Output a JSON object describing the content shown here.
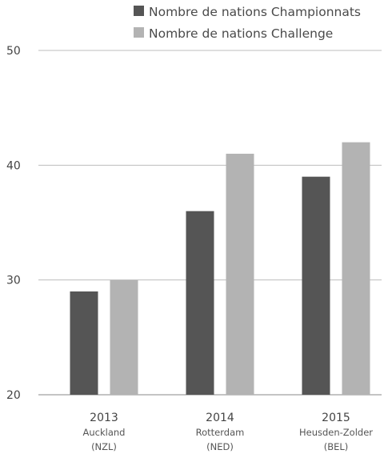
{
  "chart_data": {
    "type": "bar",
    "categories": [
      {
        "year": "2013",
        "city": "Auckland",
        "country": "(NZL)"
      },
      {
        "year": "2014",
        "city": "Rotterdam",
        "country": "(NED)"
      },
      {
        "year": "2015",
        "city": "Heusden-Zolder",
        "country": "(BEL)"
      }
    ],
    "series": [
      {
        "name": "Nombre de nations Championnats",
        "color": "#555555",
        "values": [
          29,
          36,
          39
        ]
      },
      {
        "name": "Nombre de nations Challenge",
        "color": "#b3b3b3",
        "values": [
          30,
          41,
          42
        ]
      }
    ],
    "yticks": [
      "20",
      "30",
      "40",
      "50"
    ],
    "ylim": [
      20,
      50
    ],
    "grid": true,
    "legend_position": "top-right",
    "title": "",
    "xlabel": "",
    "ylabel": ""
  }
}
